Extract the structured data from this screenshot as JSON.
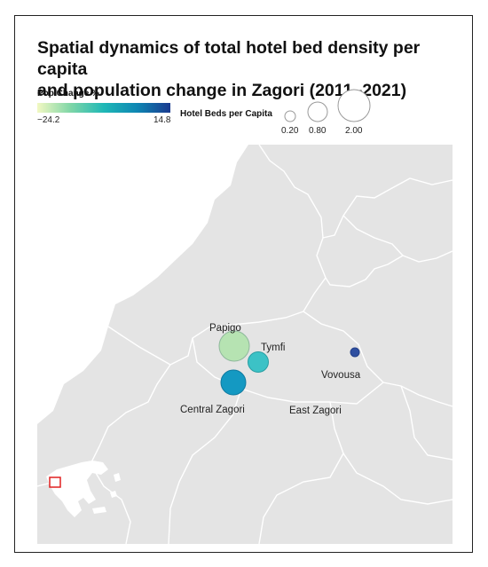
{
  "title_line1": "Spatial dynamics of total hotel bed density per capita",
  "title_line2": "and population change in Zagori (2011–2021)",
  "legend": {
    "color_title": "Pop Change %",
    "color_min": "−24.2",
    "color_max": "14.8",
    "size_title": "Hotel Beds per Capita",
    "size_values": [
      "0.20",
      "0.80",
      "2.00"
    ]
  },
  "places": {
    "papigo": "Papigo",
    "tymfi": "Tymfi",
    "vovousa": "Vovousa",
    "central_zagori": "Central Zagori",
    "east_zagori": "East Zagori"
  },
  "colors": {
    "land": "#e4e4e4",
    "border": "#ffffff",
    "inset_marker": "#e02020"
  },
  "bubbles": [
    {
      "name": "Papigo",
      "beds_per_capita": 1.45,
      "pop_change": -20.0,
      "color": "#b6e3b2"
    },
    {
      "name": "Tymfi",
      "beds_per_capita": 0.75,
      "pop_change": 0.0,
      "color": "#3cc2c6"
    },
    {
      "name": "Central Zagori",
      "beds_per_capita": 0.95,
      "pop_change": 8.0,
      "color": "#1499c2"
    },
    {
      "name": "Vovousa",
      "beds_per_capita": 0.15,
      "pop_change": 14.8,
      "color": "#2f4fa0"
    }
  ]
}
